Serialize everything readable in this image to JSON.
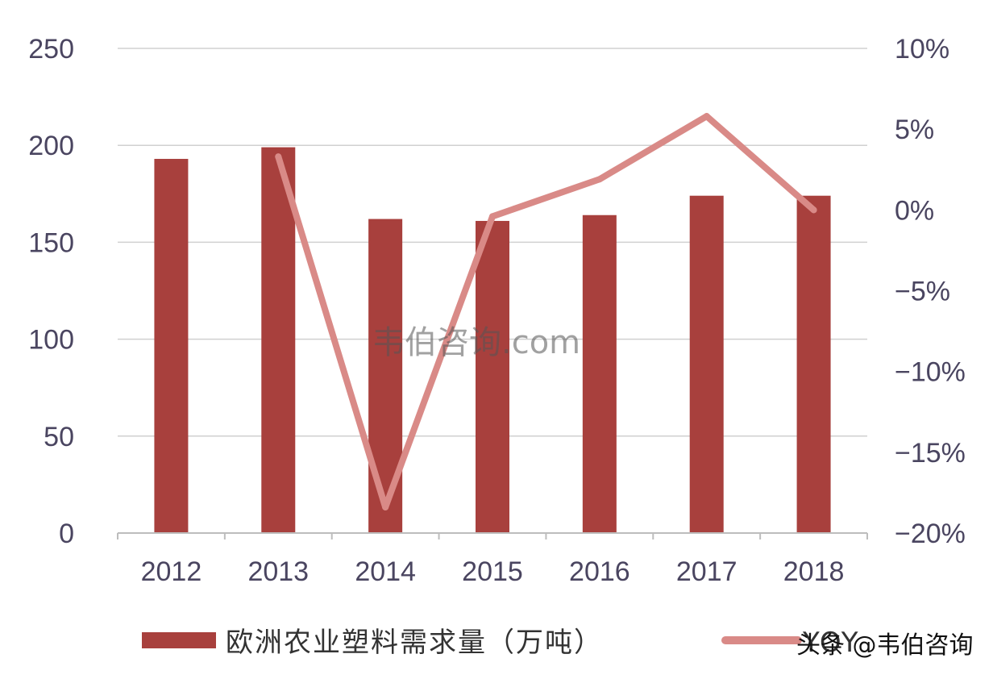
{
  "chart_data": {
    "type": "bar",
    "categories": [
      "2012",
      "2013",
      "2014",
      "2015",
      "2016",
      "2017",
      "2018"
    ],
    "series": [
      {
        "name": "欧洲农业塑料需求量（万吨）",
        "type": "bar",
        "axis": "left",
        "values": [
          193,
          199,
          162,
          161,
          164,
          174,
          174
        ]
      },
      {
        "name": "YOY",
        "type": "line",
        "axis": "right",
        "values": [
          null,
          3.3,
          -18.4,
          -0.4,
          1.9,
          5.8,
          0.0
        ]
      }
    ],
    "yleft": {
      "lim": [
        0,
        250
      ],
      "ticks": [
        "0",
        "50",
        "100",
        "150",
        "200",
        "250"
      ]
    },
    "yright": {
      "lim": [
        -20,
        10
      ],
      "ticks": [
        "−20%",
        "−15%",
        "−10%",
        "−5%",
        "0%",
        "5%",
        "10%"
      ]
    },
    "grid": true,
    "legend_position": "bottom"
  },
  "colors": {
    "bar": "#a8403d",
    "line": "#d98a87",
    "grid": "#d0d0d0",
    "axis": "#bdbdbd"
  },
  "watermark": "韦伯咨询.com",
  "corner_mark": "头条 @韦伯咨询"
}
